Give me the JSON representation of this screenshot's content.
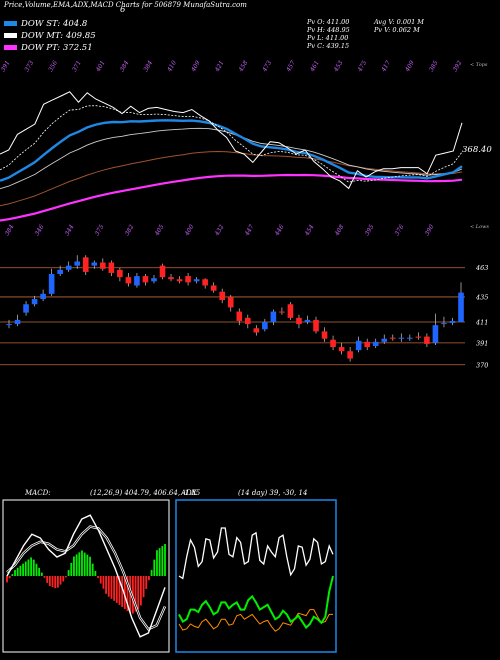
{
  "header": {
    "title": "Price,Volume,EMA,ADX,MACD Charts for 506879 MunafaSutra.com",
    "six": "6",
    "dow_st": "DOW ST: 404.8",
    "dow_mt": "DOW MT: 409.85",
    "dow_pt": "DOW PT: 372.51",
    "pv_o": "Pv   O: 411.00",
    "pv_h": "Pv   H: 448.95",
    "pv_l": "Pv   L: 411.00",
    "pv_c": "Pv   C: 439.15",
    "avg_v": "Avg V: 0.001 M",
    "pv_v": "Pv   V: 0.062  M"
  },
  "colors": {
    "dow_st": "#1e88e5",
    "dow_mt": "#ffffff",
    "dow_pt": "#ff33ff"
  },
  "ema_panel": {
    "label_top": "< Tops",
    "label_bottom": "< Lows",
    "price_label": "368.40",
    "top_labels": [
      "391",
      "373",
      "356",
      "371",
      "401",
      "384",
      "384",
      "410",
      "409",
      "421",
      "458",
      "473",
      "457",
      "461",
      "453",
      "475",
      "417",
      "409",
      "385",
      "392"
    ],
    "bottom_labels": [
      "384",
      "346",
      "344",
      "375",
      "382",
      "405",
      "400",
      "432",
      "447",
      "446",
      "454",
      "408",
      "395",
      "376",
      "390"
    ]
  },
  "candle_panel": {
    "levels": [
      "463",
      "435",
      "411",
      "391",
      "370"
    ]
  },
  "macd_panel": {
    "label": "MACD:",
    "values": "(12,26,9) 404.79, 406.64, -1.85"
  },
  "adx_panel": {
    "label": "ADX",
    "values": "(14 day) 39, -30, 14"
  },
  "chart_data": [
    {
      "type": "candlestick",
      "title": "Price,Volume,EMA,ADX,MACD Charts for 506879 MunafaSutra.com",
      "reference_levels": [
        463,
        435,
        411,
        391,
        370
      ],
      "candles": [
        {
          "o": 409,
          "c": 409,
          "h": 413,
          "l": 405
        },
        {
          "o": 409,
          "c": 413,
          "h": 418,
          "l": 407
        },
        {
          "o": 420,
          "c": 428,
          "h": 431,
          "l": 417
        },
        {
          "o": 428,
          "c": 433,
          "h": 436,
          "l": 426
        },
        {
          "o": 433,
          "c": 438,
          "h": 442,
          "l": 431
        },
        {
          "o": 438,
          "c": 457,
          "h": 462,
          "l": 436
        },
        {
          "o": 457,
          "c": 461,
          "h": 465,
          "l": 455
        },
        {
          "o": 461,
          "c": 465,
          "h": 469,
          "l": 459
        },
        {
          "o": 465,
          "c": 469,
          "h": 475,
          "l": 462
        },
        {
          "o": 473,
          "c": 459,
          "h": 475,
          "l": 456
        },
        {
          "o": 465,
          "c": 468,
          "h": 470,
          "l": 462
        },
        {
          "o": 468,
          "c": 462,
          "h": 472,
          "l": 460
        },
        {
          "o": 468,
          "c": 458,
          "h": 470,
          "l": 455
        },
        {
          "o": 461,
          "c": 454,
          "h": 463,
          "l": 450
        },
        {
          "o": 454,
          "c": 448,
          "h": 458,
          "l": 445
        },
        {
          "o": 446,
          "c": 455,
          "h": 458,
          "l": 444
        },
        {
          "o": 455,
          "c": 449,
          "h": 457,
          "l": 446
        },
        {
          "o": 450,
          "c": 453,
          "h": 456,
          "l": 448
        },
        {
          "o": 465,
          "c": 454,
          "h": 467,
          "l": 452
        },
        {
          "o": 454,
          "c": 452,
          "h": 457,
          "l": 450
        },
        {
          "o": 452,
          "c": 450,
          "h": 455,
          "l": 448
        },
        {
          "o": 455,
          "c": 449,
          "h": 458,
          "l": 446
        },
        {
          "o": 450,
          "c": 452,
          "h": 454,
          "l": 448
        },
        {
          "o": 452,
          "c": 446,
          "h": 453,
          "l": 443
        },
        {
          "o": 446,
          "c": 441,
          "h": 449,
          "l": 439
        },
        {
          "o": 440,
          "c": 432,
          "h": 443,
          "l": 429
        },
        {
          "o": 435,
          "c": 425,
          "h": 437,
          "l": 421
        },
        {
          "o": 421,
          "c": 412,
          "h": 424,
          "l": 408
        },
        {
          "o": 415,
          "c": 409,
          "h": 418,
          "l": 405
        },
        {
          "o": 405,
          "c": 401,
          "h": 408,
          "l": 398
        },
        {
          "o": 404,
          "c": 411,
          "h": 414,
          "l": 402
        },
        {
          "o": 411,
          "c": 421,
          "h": 423,
          "l": 408
        },
        {
          "o": 421,
          "c": 420,
          "h": 425,
          "l": 418
        },
        {
          "o": 428,
          "c": 415,
          "h": 430,
          "l": 413
        },
        {
          "o": 415,
          "c": 409,
          "h": 418,
          "l": 405
        },
        {
          "o": 411,
          "c": 413,
          "h": 417,
          "l": 409
        },
        {
          "o": 413,
          "c": 402,
          "h": 416,
          "l": 400
        },
        {
          "o": 402,
          "c": 395,
          "h": 406,
          "l": 392
        },
        {
          "o": 394,
          "c": 387,
          "h": 398,
          "l": 384
        },
        {
          "o": 387,
          "c": 383,
          "h": 391,
          "l": 380
        },
        {
          "o": 383,
          "c": 376,
          "h": 387,
          "l": 373
        },
        {
          "o": 384,
          "c": 393,
          "h": 397,
          "l": 382
        },
        {
          "o": 392,
          "c": 387,
          "h": 395,
          "l": 384
        },
        {
          "o": 388,
          "c": 392,
          "h": 395,
          "l": 386
        },
        {
          "o": 392,
          "c": 395,
          "h": 399,
          "l": 390
        },
        {
          "o": 396,
          "c": 395,
          "h": 399,
          "l": 393
        },
        {
          "o": 395,
          "c": 396,
          "h": 400,
          "l": 392
        },
        {
          "o": 395,
          "c": 396,
          "h": 399,
          "l": 393
        },
        {
          "o": 397,
          "c": 396,
          "h": 401,
          "l": 394
        },
        {
          "o": 397,
          "c": 390,
          "h": 400,
          "l": 387
        },
        {
          "o": 391,
          "c": 408,
          "h": 419,
          "l": 389
        },
        {
          "o": 410,
          "c": 410,
          "h": 416,
          "l": 406
        },
        {
          "o": 410,
          "c": 412,
          "h": 415,
          "l": 408
        },
        {
          "o": 411,
          "c": 439.15,
          "h": 448.95,
          "l": 411
        }
      ]
    },
    {
      "type": "line",
      "title": "MACD",
      "series": [
        {
          "name": "MACD",
          "values": [
            0,
            8,
            16,
            22,
            20,
            14,
            10,
            12,
            22,
            30,
            32,
            24,
            14,
            4,
            -8,
            -22,
            -32,
            -30,
            -18,
            -6
          ]
        },
        {
          "name": "Signal",
          "values": [
            2,
            6,
            12,
            16,
            18,
            17,
            14,
            13,
            16,
            22,
            26,
            25,
            20,
            12,
            2,
            -10,
            -22,
            -28,
            -26,
            -16
          ]
        },
        {
          "name": "Histogram",
          "values": [
            -2,
            2,
            4,
            6,
            2,
            -3,
            -4,
            -1,
            6,
            8,
            6,
            -1,
            -6,
            -8,
            -10,
            -12,
            -10,
            -2,
            8,
            10
          ]
        }
      ]
    },
    {
      "type": "line",
      "title": "ADX",
      "series": [
        {
          "name": "ADX",
          "values": [
            30,
            38,
            42,
            36,
            45,
            40,
            50,
            38,
            44,
            36,
            48,
            35,
            40,
            46,
            38,
            33,
            42,
            37,
            44,
            36,
            39
          ]
        },
        {
          "name": "+DI",
          "values": [
            14,
            12,
            16,
            18,
            17,
            15,
            19,
            18,
            16,
            20,
            19,
            17,
            15,
            13,
            14,
            12,
            11,
            10,
            12,
            13,
            30
          ]
        },
        {
          "name": "-DI",
          "values": [
            10,
            8,
            9,
            11,
            10,
            9,
            12,
            10,
            14,
            13,
            12,
            11,
            9,
            8,
            10,
            12,
            14,
            16,
            13,
            11,
            14
          ]
        }
      ]
    }
  ]
}
